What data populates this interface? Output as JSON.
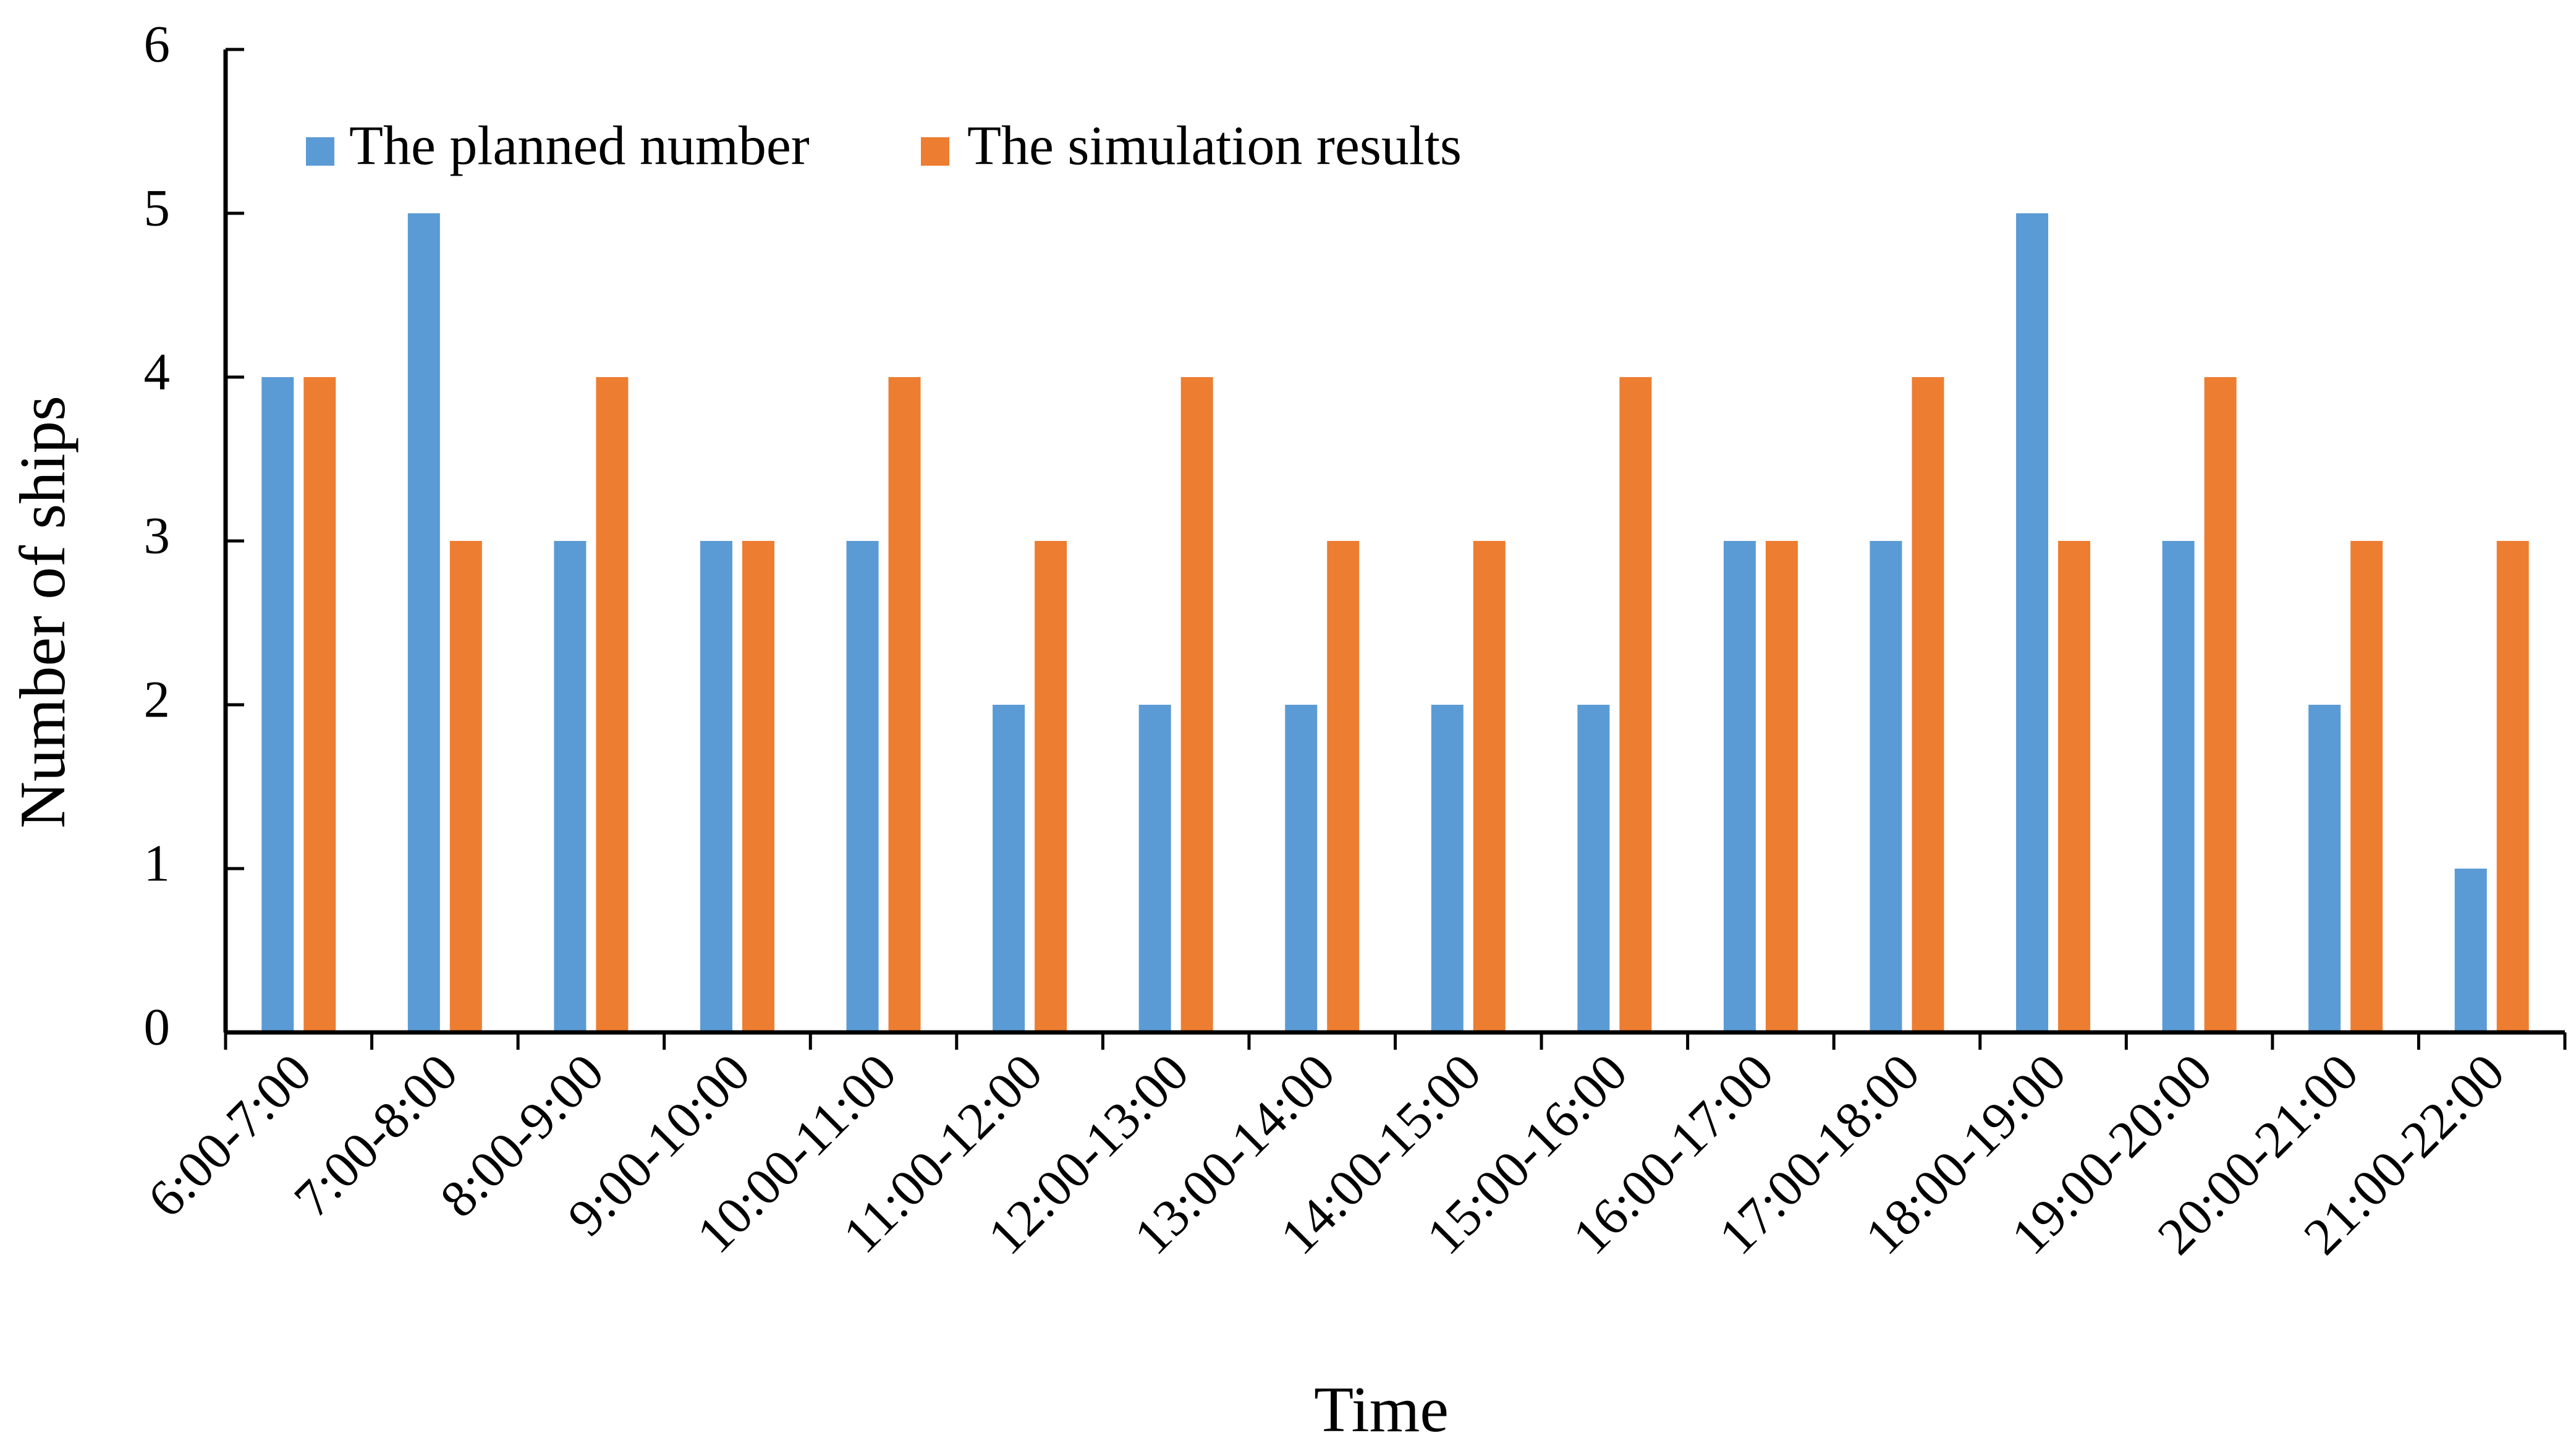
{
  "chart_data": {
    "type": "bar",
    "title": "",
    "xlabel": "Time",
    "ylabel": "Number of ships",
    "ylim": [
      0,
      6
    ],
    "yticks": [
      0,
      1,
      2,
      3,
      4,
      5,
      6
    ],
    "grid": false,
    "legend_position": "top-left",
    "categories": [
      "6:00-7:00",
      "7:00-8:00",
      "8:00-9:00",
      "9:00-10:00",
      "10:00-11:00",
      "11:00-12:00",
      "12:00-13:00",
      "13:00-14:00",
      "14:00-15:00",
      "15:00-16:00",
      "16:00-17:00",
      "17:00-18:00",
      "18:00-19:00",
      "19:00-20:00",
      "20:00-21:00",
      "21:00-22:00"
    ],
    "series": [
      {
        "name": "The planned number",
        "color": "#5B9BD5",
        "values": [
          4,
          5,
          3,
          3,
          3,
          2,
          2,
          2,
          2,
          2,
          3,
          3,
          5,
          3,
          2,
          1
        ]
      },
      {
        "name": "The simulation results",
        "color": "#ED7D31",
        "values": [
          4,
          3,
          4,
          3,
          4,
          3,
          4,
          3,
          3,
          4,
          3,
          4,
          3,
          4,
          3,
          3
        ]
      }
    ]
  }
}
